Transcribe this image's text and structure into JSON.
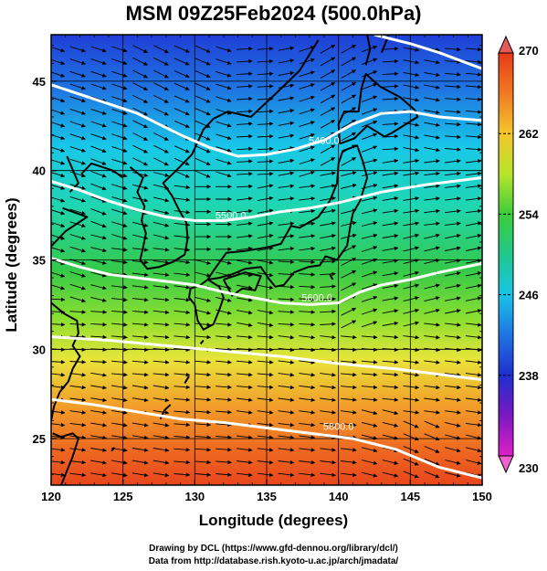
{
  "title": "MSM 09Z25Feb2024 (500.0hPa)",
  "xlabel": "Longitude (degrees)",
  "ylabel": "Latitude  (degrees)",
  "credits": {
    "line1": "Drawing by DCL (https://www.gfd-dennou.org/library/dcl/)",
    "line2": "Data from http://database.rish.kyoto-u.ac.jp/arch/jmadata/"
  },
  "chart_data": {
    "type": "heatmap",
    "xlim": [
      120,
      150
    ],
    "ylim": [
      22.4,
      47.6
    ],
    "x_ticks": [
      "120",
      "125",
      "130",
      "135",
      "140",
      "145",
      "150"
    ],
    "y_ticks": [
      "25",
      "30",
      "35",
      "40",
      "45"
    ],
    "x_tick_values": [
      120,
      125,
      130,
      135,
      140,
      145,
      150
    ],
    "y_tick_values": [
      25,
      30,
      35,
      40,
      45
    ],
    "grid": true,
    "colorbar": {
      "min": 230,
      "max": 270,
      "labels": [
        "270",
        "262",
        "254",
        "246",
        "238",
        "230"
      ],
      "label_values": [
        270,
        262,
        254,
        246,
        238,
        230
      ]
    },
    "contours": [
      {
        "label": "5400.0",
        "label_lon": 139,
        "label_lat": 41.5,
        "points": [
          [
            120,
            44.8
          ],
          [
            123,
            44
          ],
          [
            126,
            43.2
          ],
          [
            129,
            42
          ],
          [
            131,
            41.3
          ],
          [
            133,
            40.8
          ],
          [
            135,
            40.9
          ],
          [
            137,
            41.2
          ],
          [
            139,
            41.7
          ],
          [
            141,
            42.6
          ],
          [
            143,
            43.2
          ],
          [
            145,
            43.3
          ],
          [
            147,
            43
          ],
          [
            150,
            42.8
          ]
        ]
      },
      {
        "label": "5500.0",
        "label_lon": 132.5,
        "label_lat": 37.3,
        "points": [
          [
            120,
            39.4
          ],
          [
            122,
            38.9
          ],
          [
            124,
            38.3
          ],
          [
            126,
            37.8
          ],
          [
            128,
            37.4
          ],
          [
            130,
            37.2
          ],
          [
            132,
            37.2
          ],
          [
            134,
            37.4
          ],
          [
            136,
            37.7
          ],
          [
            138,
            37.9
          ],
          [
            140,
            38.2
          ],
          [
            143,
            38.8
          ],
          [
            146,
            39.2
          ],
          [
            150,
            39.6
          ]
        ]
      },
      {
        "label": "5600.0",
        "label_lon": 138.5,
        "label_lat": 32.7,
        "points": [
          [
            120,
            35.1
          ],
          [
            122,
            34.6
          ],
          [
            124,
            34.2
          ],
          [
            126,
            34
          ],
          [
            128,
            33.8
          ],
          [
            130,
            33.6
          ],
          [
            132,
            33.2
          ],
          [
            134,
            32.9
          ],
          [
            136,
            32.6
          ],
          [
            138,
            32.5
          ],
          [
            140,
            32.6
          ],
          [
            141.5,
            33.2
          ],
          [
            143,
            33.6
          ],
          [
            145,
            33.9
          ],
          [
            147,
            34.3
          ],
          [
            150,
            34.8
          ]
        ]
      },
      {
        "label": "",
        "label_lon": 0,
        "label_lat": 0,
        "points": [
          [
            120,
            30.7
          ],
          [
            124,
            30.5
          ],
          [
            128,
            30.2
          ],
          [
            132,
            29.9
          ],
          [
            136,
            29.6
          ],
          [
            140,
            29.2
          ],
          [
            144,
            28.9
          ],
          [
            147,
            28.6
          ],
          [
            150,
            28.3
          ]
        ]
      },
      {
        "label": "5800.0",
        "label_lon": 140,
        "label_lat": 25.5,
        "points": [
          [
            120,
            27.2
          ],
          [
            123,
            26.9
          ],
          [
            126,
            26.5
          ],
          [
            129,
            26.1
          ],
          [
            132,
            25.9
          ],
          [
            135,
            25.6
          ],
          [
            138,
            25.3
          ],
          [
            141,
            25
          ],
          [
            144,
            24.4
          ],
          [
            147,
            23.4
          ],
          [
            150,
            22.8
          ]
        ]
      },
      {
        "label": "",
        "label_lon": 0,
        "label_lat": 0,
        "points": [
          [
            142.5,
            47.6
          ],
          [
            145,
            47.1
          ],
          [
            147,
            46.6
          ],
          [
            150,
            45.7
          ]
        ]
      }
    ],
    "coastlines": [
      [
        [
          125.5,
          40.2
        ],
        [
          126.4,
          39.6
        ],
        [
          126.0,
          38.8
        ],
        [
          126.5,
          38.0
        ],
        [
          126.3,
          37.2
        ],
        [
          126.6,
          36.5
        ],
        [
          126.4,
          35.7
        ],
        [
          126.2,
          35.0
        ],
        [
          126.7,
          34.5
        ],
        [
          127.5,
          34.6
        ],
        [
          128.5,
          34.9
        ],
        [
          129.3,
          35.3
        ],
        [
          129.5,
          36.2
        ],
        [
          129.4,
          37.1
        ],
        [
          128.9,
          37.8
        ],
        [
          128.4,
          38.6
        ],
        [
          127.8,
          39.3
        ],
        [
          128.7,
          40.0
        ],
        [
          129.8,
          40.9
        ],
        [
          130.6,
          42.3
        ],
        [
          131.3,
          42.9
        ],
        [
          132.3,
          43.3
        ],
        [
          133.9,
          43.0
        ],
        [
          135.5,
          44.2
        ],
        [
          137.3,
          45.6
        ],
        [
          138.6,
          47.3
        ]
      ],
      [
        [
          121.1,
          40.8
        ],
        [
          121.9,
          39.3
        ],
        [
          121.3,
          38.8
        ]
      ],
      [
        [
          122.1,
          39.8
        ],
        [
          122.8,
          40.4
        ],
        [
          124.3,
          40.0
        ],
        [
          125.0,
          39.6
        ]
      ],
      [
        [
          120.8,
          37.9
        ],
        [
          122.5,
          37.4
        ],
        [
          121.0,
          36.6
        ],
        [
          119.8,
          35.6
        ]
      ],
      [
        [
          120.0,
          32.6
        ],
        [
          120.9,
          32.0
        ],
        [
          121.8,
          31.6
        ],
        [
          121.9,
          30.9
        ],
        [
          121.5,
          30.2
        ],
        [
          122.0,
          29.6
        ],
        [
          121.5,
          28.9
        ],
        [
          121.2,
          28.2
        ],
        [
          120.6,
          27.6
        ],
        [
          120.2,
          26.8
        ],
        [
          120.0,
          26.0
        ]
      ],
      [
        [
          130.9,
          33.9
        ],
        [
          131.7,
          33.5
        ],
        [
          132.0,
          32.9
        ],
        [
          131.7,
          32.2
        ],
        [
          131.3,
          31.4
        ],
        [
          130.6,
          31.1
        ],
        [
          130.2,
          31.6
        ],
        [
          130.0,
          32.5
        ],
        [
          129.6,
          32.9
        ],
        [
          129.7,
          33.4
        ],
        [
          130.4,
          33.6
        ],
        [
          130.9,
          33.9
        ]
      ],
      [
        [
          132.0,
          33.9
        ],
        [
          132.6,
          33.0
        ],
        [
          133.3,
          33.4
        ],
        [
          134.2,
          33.3
        ],
        [
          134.6,
          34.1
        ],
        [
          133.5,
          34.3
        ],
        [
          132.0,
          33.9
        ]
      ],
      [
        [
          130.9,
          33.9
        ],
        [
          131.3,
          34.4
        ],
        [
          132.2,
          35.4
        ],
        [
          133.5,
          35.5
        ],
        [
          135.0,
          35.7
        ],
        [
          136.0,
          35.9
        ],
        [
          136.7,
          36.9
        ],
        [
          137.3,
          36.8
        ],
        [
          138.6,
          37.4
        ],
        [
          139.4,
          38.3
        ],
        [
          139.9,
          39.3
        ],
        [
          140.0,
          40.4
        ],
        [
          140.3,
          41.1
        ],
        [
          141.3,
          41.4
        ],
        [
          141.7,
          40.5
        ],
        [
          142.0,
          39.6
        ],
        [
          141.5,
          38.3
        ],
        [
          141.0,
          37.6
        ],
        [
          140.8,
          36.8
        ],
        [
          140.6,
          35.8
        ],
        [
          139.9,
          35.0
        ],
        [
          139.1,
          35.2
        ],
        [
          138.7,
          34.7
        ],
        [
          137.9,
          34.6
        ],
        [
          136.9,
          34.3
        ],
        [
          136.2,
          33.6
        ],
        [
          135.6,
          33.5
        ],
        [
          135.1,
          34.0
        ],
        [
          134.6,
          34.6
        ],
        [
          133.5,
          34.5
        ],
        [
          132.6,
          34.2
        ],
        [
          131.7,
          34.0
        ],
        [
          130.9,
          33.9
        ]
      ],
      [
        [
          140.1,
          41.5
        ],
        [
          140.0,
          42.6
        ],
        [
          140.4,
          43.3
        ],
        [
          141.4,
          43.3
        ],
        [
          141.6,
          44.6
        ],
        [
          141.9,
          45.4
        ],
        [
          142.9,
          44.7
        ],
        [
          144.3,
          44.1
        ],
        [
          145.3,
          43.4
        ],
        [
          145.5,
          43.0
        ],
        [
          143.7,
          42.1
        ],
        [
          143.2,
          41.9
        ],
        [
          142.0,
          42.5
        ],
        [
          141.1,
          41.8
        ],
        [
          140.1,
          41.5
        ]
      ],
      [
        [
          141.9,
          45.9
        ],
        [
          142.2,
          46.8
        ],
        [
          142.0,
          47.6
        ]
      ],
      [
        [
          143.5,
          47.6
        ],
        [
          143.0,
          46.6
        ]
      ],
      [
        [
          120.1,
          25.3
        ],
        [
          120.7,
          25.1
        ],
        [
          121.5,
          25.3
        ],
        [
          121.9,
          25.0
        ],
        [
          121.5,
          24.0
        ],
        [
          121.0,
          23.0
        ],
        [
          120.7,
          22.4
        ]
      ],
      [
        [
          127.6,
          26.1
        ],
        [
          127.9,
          26.6
        ],
        [
          128.3,
          26.9
        ]
      ],
      [
        [
          129.3,
          28.1
        ],
        [
          129.6,
          28.5
        ]
      ],
      [
        [
          124.2,
          24.3
        ],
        [
          124.4,
          24.5
        ]
      ],
      [
        [
          130.4,
          30.3
        ],
        [
          130.6,
          30.5
        ]
      ],
      [
        [
          139.4,
          34.2
        ],
        [
          139.6,
          33.9
        ]
      ]
    ]
  },
  "colors": {
    "contour": "#ffffff",
    "coast": "#000000",
    "vector": "#000000"
  }
}
